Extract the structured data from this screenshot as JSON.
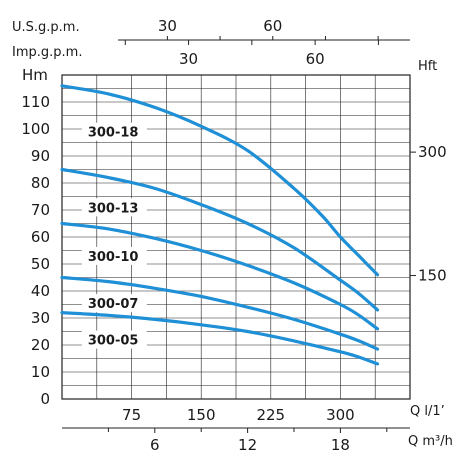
{
  "chart_data": {
    "type": "line",
    "y_axis_left": {
      "label": "Hm",
      "range": [
        0,
        120
      ],
      "ticks": [
        0,
        10,
        20,
        30,
        40,
        50,
        60,
        70,
        80,
        90,
        100,
        110
      ]
    },
    "y_axis_right": {
      "label": "Hft",
      "ticks": [
        {
          "value": 300,
          "label": "300"
        },
        {
          "value": 150,
          "label": "150"
        }
      ]
    },
    "x_axis_bottom": {
      "label": "Q l/1’",
      "range": [
        0,
        375
      ],
      "ticks": [
        75,
        150,
        225,
        300
      ]
    },
    "x_axis_bottom2": {
      "label": "Q m³/h",
      "ticks": [
        {
          "value": 6,
          "label": "6"
        },
        {
          "value": 12,
          "label": "12"
        },
        {
          "value": 18,
          "label": "18"
        }
      ]
    },
    "x_axis_top1": {
      "label": "U.S.g.p.m.",
      "ticks": [
        {
          "value": 30,
          "label": "30"
        },
        {
          "value": 60,
          "label": "60"
        }
      ]
    },
    "x_axis_top2": {
      "label": "Imp.g.p.m.",
      "ticks": [
        {
          "value": 30,
          "label": "30"
        },
        {
          "value": 60,
          "label": "60"
        }
      ]
    },
    "grid": true,
    "series": [
      {
        "name": "300-18",
        "label_pos": [
          30,
          99
        ],
        "x": [
          0,
          50,
          100,
          150,
          200,
          250,
          280,
          300,
          320,
          340
        ],
        "y": [
          116,
          113,
          108,
          101,
          92,
          78,
          68,
          60,
          53,
          46
        ]
      },
      {
        "name": "300-13",
        "label_pos": [
          30,
          71
        ],
        "x": [
          0,
          50,
          100,
          150,
          200,
          250,
          300,
          320,
          340
        ],
        "y": [
          85,
          82,
          78,
          72,
          65,
          56,
          44,
          39,
          33
        ]
      },
      {
        "name": "300-10",
        "label_pos": [
          30,
          53
        ],
        "x": [
          0,
          50,
          100,
          150,
          200,
          250,
          300,
          320,
          340
        ],
        "y": [
          65,
          63,
          59.5,
          55,
          49.5,
          43,
          35,
          31,
          26
        ]
      },
      {
        "name": "300-07",
        "label_pos": [
          30,
          35.5
        ],
        "x": [
          0,
          50,
          100,
          150,
          200,
          250,
          300,
          320,
          340
        ],
        "y": [
          45,
          43.5,
          41,
          38,
          34,
          29.5,
          24,
          21.5,
          18.5
        ]
      },
      {
        "name": "300-05",
        "label_pos": [
          30,
          22
        ],
        "x": [
          0,
          50,
          100,
          150,
          200,
          250,
          300,
          320,
          340
        ],
        "y": [
          32,
          31,
          29.5,
          27.5,
          25,
          21.5,
          17.5,
          15.5,
          13
        ]
      }
    ]
  }
}
